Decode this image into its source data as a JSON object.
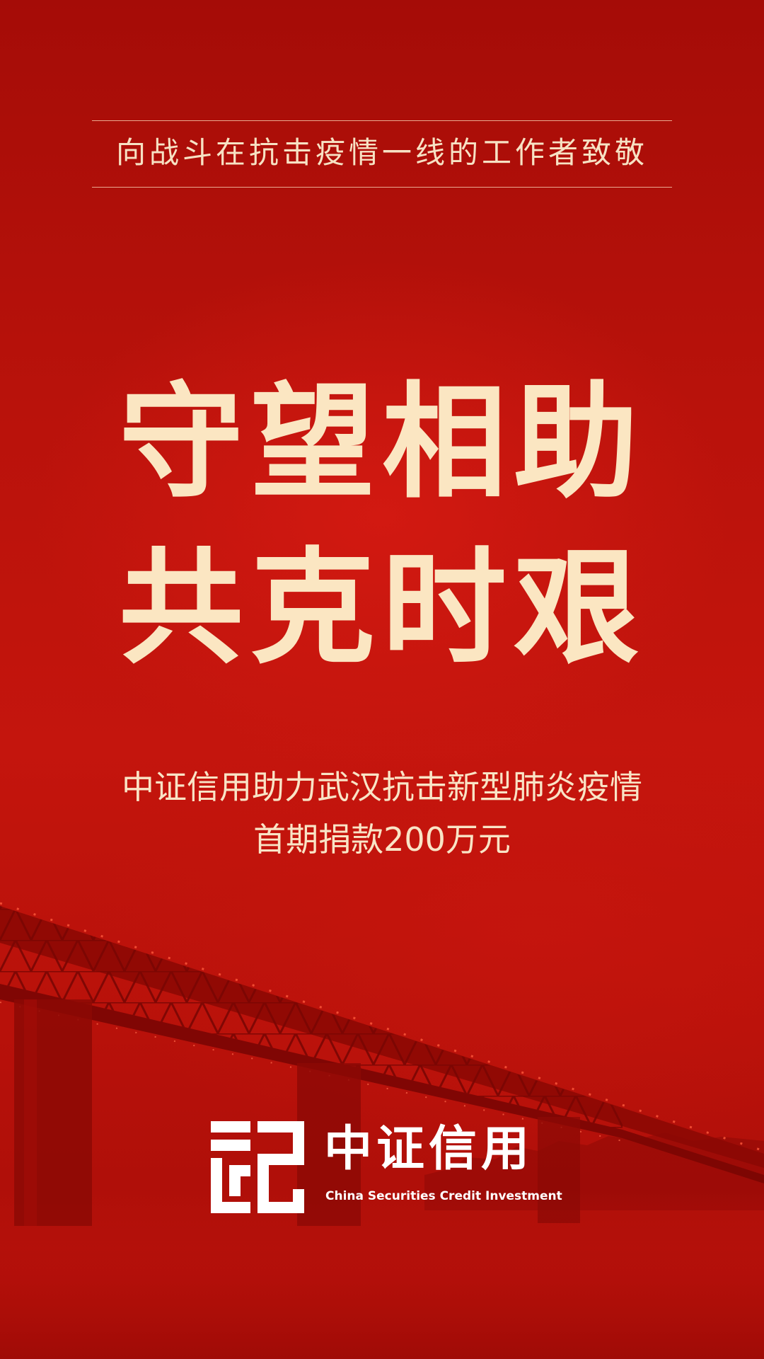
{
  "colors": {
    "background": "#b9120b",
    "headline": "#fbe6c2",
    "text": "#f7e2c4",
    "logo": "#ffffff"
  },
  "tagline": "向战斗在抗击疫情一线的工作者致敬",
  "headline": {
    "line1": "守望相助",
    "line2": "共克时艰"
  },
  "subheadline": {
    "line1": "中证信用助力武汉抗击新型肺炎疫情",
    "line2": "首期捐款200万元"
  },
  "brand": {
    "name_cn": "中证信用",
    "name_en": "China Securities Credit Investment",
    "logo_icon": "csci-logo-icon"
  },
  "background_icon": "bridge-silhouette-icon"
}
